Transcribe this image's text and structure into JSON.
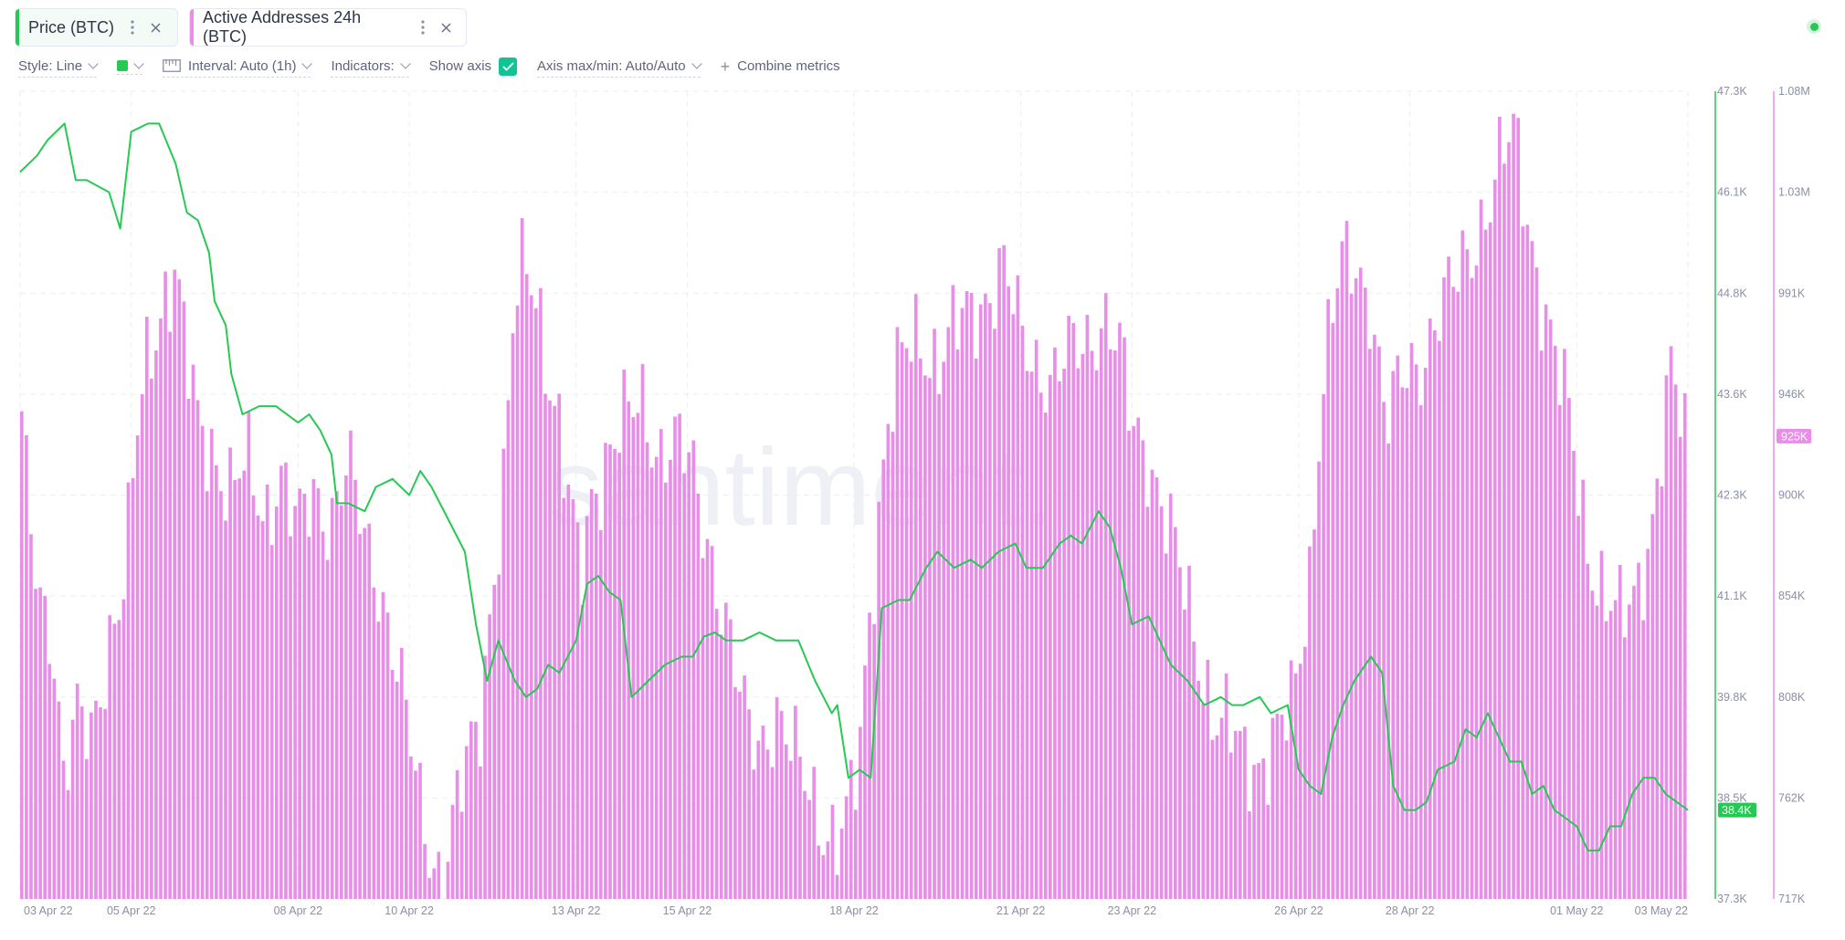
{
  "tabs": [
    {
      "label": "Price (BTC)",
      "color": "#26c953"
    },
    {
      "label": "Active Addresses 24h (BTC)",
      "color": "#e88ee8"
    }
  ],
  "toolbar": {
    "style_label": "Style: Line",
    "interval_label": "Interval: Auto (1h)",
    "indicators_label": "Indicators:",
    "show_axis_label": "Show axis",
    "show_axis_checked": true,
    "axis_minmax_label": "Axis max/min: Auto/Auto",
    "combine_label": "Combine metrics",
    "swatch_color": "#26c953"
  },
  "icons": {
    "tab_menu": "more-vertical-icon",
    "tab_close": "close-icon",
    "status": "online-status-dot",
    "interval": "ruler-icon",
    "combine": "plus-icon"
  },
  "watermark": "santiment.",
  "chart_data": {
    "type": "line+bar",
    "x_tick_labels": [
      "03 Apr 22",
      "05 Apr 22",
      "08 Apr 22",
      "10 Apr 22",
      "13 Apr 22",
      "15 Apr 22",
      "18 Apr 22",
      "21 Apr 22",
      "23 Apr 22",
      "26 Apr 22",
      "28 Apr 22",
      "01 May 22",
      "03 May 22"
    ],
    "x_tick_days": [
      0,
      2,
      5,
      7,
      10,
      12,
      15,
      18,
      20,
      23,
      25,
      28,
      30
    ],
    "x_range_days": [
      0,
      30
    ],
    "grid": true,
    "series": [
      {
        "name": "Price (BTC)",
        "type": "line",
        "color": "#26c953",
        "axis": "left",
        "ylim": [
          37300,
          47300
        ],
        "y_tick_labels": [
          "47.3K",
          "46.1K",
          "44.8K",
          "43.6K",
          "42.3K",
          "41.1K",
          "39.8K",
          "38.5K",
          "37.3K"
        ],
        "last_value_label": "38.4K",
        "last_value": 38400,
        "points": [
          [
            0.0,
            46300
          ],
          [
            0.3,
            46500
          ],
          [
            0.5,
            46700
          ],
          [
            0.8,
            46900
          ],
          [
            1.0,
            46200
          ],
          [
            1.2,
            46200
          ],
          [
            1.6,
            46050
          ],
          [
            1.8,
            45600
          ],
          [
            2.0,
            46800
          ],
          [
            2.3,
            46900
          ],
          [
            2.5,
            46900
          ],
          [
            2.8,
            46400
          ],
          [
            3.0,
            45800
          ],
          [
            3.2,
            45700
          ],
          [
            3.4,
            45300
          ],
          [
            3.5,
            44700
          ],
          [
            3.7,
            44400
          ],
          [
            3.8,
            43800
          ],
          [
            4.0,
            43300
          ],
          [
            4.3,
            43400
          ],
          [
            4.6,
            43400
          ],
          [
            5.0,
            43200
          ],
          [
            5.2,
            43300
          ],
          [
            5.4,
            43100
          ],
          [
            5.6,
            42800
          ],
          [
            5.7,
            42200
          ],
          [
            5.9,
            42200
          ],
          [
            6.2,
            42100
          ],
          [
            6.4,
            42400
          ],
          [
            6.7,
            42500
          ],
          [
            7.0,
            42300
          ],
          [
            7.2,
            42600
          ],
          [
            7.4,
            42400
          ],
          [
            7.7,
            42000
          ],
          [
            8.0,
            41600
          ],
          [
            8.2,
            40700
          ],
          [
            8.4,
            40000
          ],
          [
            8.6,
            40500
          ],
          [
            8.9,
            40000
          ],
          [
            9.1,
            39800
          ],
          [
            9.3,
            39900
          ],
          [
            9.5,
            40200
          ],
          [
            9.7,
            40100
          ],
          [
            10.0,
            40500
          ],
          [
            10.2,
            41200
          ],
          [
            10.4,
            41300
          ],
          [
            10.6,
            41100
          ],
          [
            10.8,
            41000
          ],
          [
            11.0,
            39800
          ],
          [
            11.3,
            40000
          ],
          [
            11.6,
            40200
          ],
          [
            11.9,
            40300
          ],
          [
            12.1,
            40300
          ],
          [
            12.3,
            40550
          ],
          [
            12.5,
            40600
          ],
          [
            12.7,
            40500
          ],
          [
            13.0,
            40500
          ],
          [
            13.3,
            40600
          ],
          [
            13.6,
            40500
          ],
          [
            14.0,
            40500
          ],
          [
            14.3,
            40000
          ],
          [
            14.6,
            39600
          ],
          [
            14.7,
            39700
          ],
          [
            14.9,
            38800
          ],
          [
            15.1,
            38900
          ],
          [
            15.3,
            38800
          ],
          [
            15.5,
            40900
          ],
          [
            15.8,
            41000
          ],
          [
            16.0,
            41000
          ],
          [
            16.3,
            41400
          ],
          [
            16.5,
            41600
          ],
          [
            16.8,
            41400
          ],
          [
            17.1,
            41500
          ],
          [
            17.3,
            41400
          ],
          [
            17.6,
            41600
          ],
          [
            17.9,
            41700
          ],
          [
            18.1,
            41400
          ],
          [
            18.4,
            41400
          ],
          [
            18.7,
            41700
          ],
          [
            18.9,
            41800
          ],
          [
            19.1,
            41700
          ],
          [
            19.4,
            42100
          ],
          [
            19.6,
            41900
          ],
          [
            19.8,
            41400
          ],
          [
            20.0,
            40700
          ],
          [
            20.3,
            40800
          ],
          [
            20.5,
            40500
          ],
          [
            20.7,
            40200
          ],
          [
            21.0,
            40000
          ],
          [
            21.3,
            39700
          ],
          [
            21.6,
            39800
          ],
          [
            21.8,
            39700
          ],
          [
            22.0,
            39700
          ],
          [
            22.3,
            39800
          ],
          [
            22.5,
            39600
          ],
          [
            22.8,
            39700
          ],
          [
            23.0,
            38900
          ],
          [
            23.2,
            38700
          ],
          [
            23.4,
            38600
          ],
          [
            23.6,
            39300
          ],
          [
            23.8,
            39700
          ],
          [
            24.0,
            40000
          ],
          [
            24.3,
            40300
          ],
          [
            24.5,
            40100
          ],
          [
            24.7,
            38700
          ],
          [
            24.9,
            38400
          ],
          [
            25.1,
            38400
          ],
          [
            25.3,
            38500
          ],
          [
            25.5,
            38900
          ],
          [
            25.8,
            39000
          ],
          [
            26.0,
            39400
          ],
          [
            26.2,
            39300
          ],
          [
            26.4,
            39600
          ],
          [
            26.6,
            39300
          ],
          [
            26.8,
            39000
          ],
          [
            27.0,
            39000
          ],
          [
            27.2,
            38600
          ],
          [
            27.4,
            38700
          ],
          [
            27.6,
            38400
          ],
          [
            27.8,
            38300
          ],
          [
            28.0,
            38200
          ],
          [
            28.2,
            37900
          ],
          [
            28.4,
            37900
          ],
          [
            28.6,
            38200
          ],
          [
            28.8,
            38200
          ],
          [
            29.0,
            38600
          ],
          [
            29.2,
            38800
          ],
          [
            29.4,
            38800
          ],
          [
            29.6,
            38600
          ],
          [
            29.8,
            38500
          ],
          [
            30.0,
            38400
          ]
        ]
      },
      {
        "name": "Active Addresses 24h (BTC)",
        "type": "bar",
        "color": "#e88ee8",
        "axis": "right",
        "ylim": [
          717000,
          1080000
        ],
        "y_tick_labels": [
          "1.08M",
          "1.03M",
          "991K",
          "946K",
          "900K",
          "854K",
          "808K",
          "762K",
          "717K"
        ],
        "last_value_label": "925K",
        "last_value": 925000,
        "points": [
          [
            0.0,
            940000
          ],
          [
            0.2,
            880000
          ],
          [
            0.4,
            850000
          ],
          [
            0.6,
            840000
          ],
          [
            0.8,
            770000
          ],
          [
            1.0,
            795000
          ],
          [
            1.3,
            790000
          ],
          [
            1.6,
            835000
          ],
          [
            1.9,
            860000
          ],
          [
            2.1,
            920000
          ],
          [
            2.3,
            960000
          ],
          [
            2.6,
            990000
          ],
          [
            2.8,
            1000000
          ],
          [
            3.0,
            960000
          ],
          [
            3.2,
            930000
          ],
          [
            3.5,
            920000
          ],
          [
            3.8,
            900000
          ],
          [
            4.1,
            910000
          ],
          [
            4.4,
            890000
          ],
          [
            4.7,
            910000
          ],
          [
            5.0,
            880000
          ],
          [
            5.3,
            900000
          ],
          [
            5.6,
            890000
          ],
          [
            5.9,
            910000
          ],
          [
            6.2,
            880000
          ],
          [
            6.5,
            860000
          ],
          [
            6.8,
            820000
          ],
          [
            7.0,
            790000
          ],
          [
            7.2,
            760000
          ],
          [
            7.4,
            740000
          ],
          [
            7.6,
            728000
          ],
          [
            7.8,
            750000
          ],
          [
            8.0,
            770000
          ],
          [
            8.3,
            800000
          ],
          [
            8.5,
            860000
          ],
          [
            8.7,
            900000
          ],
          [
            8.9,
            980000
          ],
          [
            9.1,
            1000000
          ],
          [
            9.3,
            990000
          ],
          [
            9.5,
            960000
          ],
          [
            9.7,
            930000
          ],
          [
            9.9,
            890000
          ],
          [
            10.1,
            860000
          ],
          [
            10.3,
            900000
          ],
          [
            10.6,
            920000
          ],
          [
            10.9,
            930000
          ],
          [
            11.2,
            940000
          ],
          [
            11.5,
            920000
          ],
          [
            11.8,
            920000
          ],
          [
            12.1,
            910000
          ],
          [
            12.4,
            880000
          ],
          [
            12.7,
            840000
          ],
          [
            13.0,
            800000
          ],
          [
            13.3,
            790000
          ],
          [
            13.6,
            800000
          ],
          [
            13.9,
            780000
          ],
          [
            14.2,
            770000
          ],
          [
            14.5,
            750000
          ],
          [
            14.7,
            740000
          ],
          [
            14.9,
            750000
          ],
          [
            15.1,
            780000
          ],
          [
            15.3,
            850000
          ],
          [
            15.6,
            930000
          ],
          [
            15.9,
            960000
          ],
          [
            16.2,
            970000
          ],
          [
            16.5,
            960000
          ],
          [
            16.8,
            970000
          ],
          [
            17.1,
            980000
          ],
          [
            17.4,
            990000
          ],
          [
            17.7,
            1000000
          ],
          [
            18.0,
            970000
          ],
          [
            18.3,
            960000
          ],
          [
            18.6,
            950000
          ],
          [
            18.9,
            960000
          ],
          [
            19.2,
            970000
          ],
          [
            19.5,
            980000
          ],
          [
            19.8,
            960000
          ],
          [
            20.0,
            930000
          ],
          [
            20.3,
            920000
          ],
          [
            20.6,
            890000
          ],
          [
            20.9,
            860000
          ],
          [
            21.2,
            830000
          ],
          [
            21.5,
            800000
          ],
          [
            21.8,
            790000
          ],
          [
            22.0,
            780000
          ],
          [
            22.3,
            780000
          ],
          [
            22.6,
            790000
          ],
          [
            22.9,
            800000
          ],
          [
            23.2,
            860000
          ],
          [
            23.4,
            940000
          ],
          [
            23.6,
            980000
          ],
          [
            23.8,
            1000000
          ],
          [
            24.0,
            1000000
          ],
          [
            24.3,
            990000
          ],
          [
            24.6,
            930000
          ],
          [
            24.9,
            950000
          ],
          [
            25.2,
            960000
          ],
          [
            25.5,
            980000
          ],
          [
            25.8,
            990000
          ],
          [
            26.1,
            1010000
          ],
          [
            26.4,
            1030000
          ],
          [
            26.7,
            1050000
          ],
          [
            26.9,
            1060000
          ],
          [
            27.1,
            1030000
          ],
          [
            27.3,
            1000000
          ],
          [
            27.6,
            960000
          ],
          [
            27.9,
            930000
          ],
          [
            28.2,
            880000
          ],
          [
            28.5,
            850000
          ],
          [
            28.8,
            840000
          ],
          [
            29.1,
            860000
          ],
          [
            29.4,
            890000
          ],
          [
            29.7,
            950000
          ],
          [
            30.0,
            925000
          ]
        ]
      }
    ]
  }
}
